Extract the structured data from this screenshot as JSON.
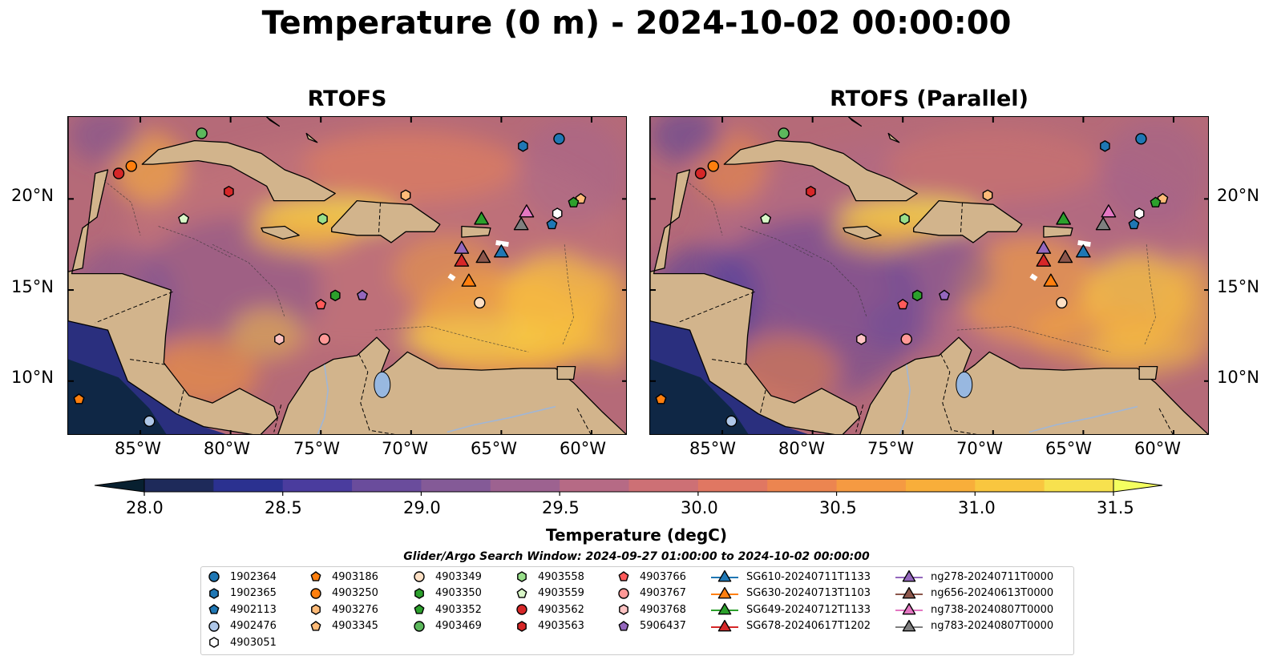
{
  "figure": {
    "title": "Temperature (0 m) - 2024-10-02 00:00:00",
    "panels": [
      {
        "id": "left",
        "title": "RTOFS"
      },
      {
        "id": "right",
        "title": "RTOFS (Parallel)"
      }
    ],
    "lat_ticks": [
      "20°N",
      "15°N",
      "10°N"
    ],
    "lon_ticks": [
      "85°W",
      "80°W",
      "75°W",
      "70°W",
      "65°W",
      "60°W"
    ],
    "colorbar": {
      "label": "Temperature (degC)",
      "min": 28.0,
      "max": 31.5,
      "ticks": [
        "28.0",
        "28.5",
        "29.0",
        "29.5",
        "30.0",
        "30.5",
        "31.0",
        "31.5"
      ],
      "colors": [
        "#1e2a5a",
        "#2b3190",
        "#4a3c9e",
        "#6a4c9c",
        "#845a97",
        "#9d6290",
        "#b66a85",
        "#cd7075",
        "#e07762",
        "#ec8550",
        "#f59a42",
        "#f8ae3a",
        "#f9c63f",
        "#f7e14e"
      ],
      "under_color": "#082030",
      "over_color": "#f4ff60"
    },
    "search_window": "Glider/Argo Search Window: 2024-09-27 01:00:00 to 2024-10-02 00:00:00",
    "land_color": "#d2b48c",
    "ocean_base_color": "#b56a78",
    "legend": [
      {
        "label": "1902364",
        "marker": "circle",
        "color": "#1f77b4"
      },
      {
        "label": "1902365",
        "marker": "hexagon",
        "color": "#1f77b4"
      },
      {
        "label": "4902113",
        "marker": "pentagon",
        "color": "#1f77b4"
      },
      {
        "label": "4902476",
        "marker": "circle",
        "color": "#aec7e8"
      },
      {
        "label": "4903051",
        "marker": "hexagon",
        "color": "#ffffff"
      },
      {
        "label": "4903186",
        "marker": "pentagon",
        "color": "#ff7f0e"
      },
      {
        "label": "4903250",
        "marker": "circle",
        "color": "#ff7f0e"
      },
      {
        "label": "4903276",
        "marker": "hexagon",
        "color": "#ffbb78"
      },
      {
        "label": "4903345",
        "marker": "pentagon",
        "color": "#ffbb78"
      },
      {
        "label": "4903349",
        "marker": "circle",
        "color": "#fde0c5"
      },
      {
        "label": "4903350",
        "marker": "hexagon",
        "color": "#2ca02c"
      },
      {
        "label": "4903352",
        "marker": "pentagon",
        "color": "#2ca02c"
      },
      {
        "label": "4903469",
        "marker": "circle",
        "color": "#5cb85c"
      },
      {
        "label": "4903558",
        "marker": "hexagon",
        "color": "#98df8a"
      },
      {
        "label": "4903559",
        "marker": "pentagon",
        "color": "#d9f7c8"
      },
      {
        "label": "4903562",
        "marker": "circle",
        "color": "#d62728"
      },
      {
        "label": "4903563",
        "marker": "hexagon",
        "color": "#d62728"
      },
      {
        "label": "4903766",
        "marker": "pentagon",
        "color": "#ff5a5a"
      },
      {
        "label": "4903767",
        "marker": "circle",
        "color": "#ff9896"
      },
      {
        "label": "4903768",
        "marker": "hexagon",
        "color": "#ffc4c4"
      },
      {
        "label": "5906437",
        "marker": "pentagon",
        "color": "#9467bd"
      },
      {
        "label": "SG610-20240711T1133",
        "marker": "triangle",
        "color": "#1f77b4"
      },
      {
        "label": "SG630-20240713T1103",
        "marker": "triangle",
        "color": "#ff7f0e"
      },
      {
        "label": "SG649-20240712T1133",
        "marker": "triangle",
        "color": "#2ca02c"
      },
      {
        "label": "SG678-20240617T1202",
        "marker": "triangle",
        "color": "#d62728"
      },
      {
        "label": "ng278-20240711T0000",
        "marker": "triangle",
        "color": "#9467bd"
      },
      {
        "label": "ng656-20240613T0000",
        "marker": "triangle",
        "color": "#8c564b"
      },
      {
        "label": "ng738-20240807T0000",
        "marker": "triangle",
        "color": "#e377c2"
      },
      {
        "label": "ng783-20240807T0000",
        "marker": "triangle",
        "color": "#7f7f7f"
      }
    ],
    "markers": [
      {
        "id": "1902364",
        "marker": "circle",
        "color": "#1f77b4",
        "lon": -61.8,
        "lat": 23.3
      },
      {
        "id": "1902365",
        "marker": "hexagon",
        "color": "#1f77b4",
        "lon": -63.8,
        "lat": 22.9
      },
      {
        "id": "4902113",
        "marker": "pentagon",
        "color": "#1f77b4",
        "lon": -62.2,
        "lat": 18.6
      },
      {
        "id": "4902476",
        "marker": "circle",
        "color": "#aec7e8",
        "lon": -84.5,
        "lat": 7.8
      },
      {
        "id": "4903051",
        "marker": "hexagon",
        "color": "#ffffff",
        "lon": -61.9,
        "lat": 19.2
      },
      {
        "id": "4903186",
        "marker": "pentagon",
        "color": "#ff7f0e",
        "lon": -88.4,
        "lat": 9.0
      },
      {
        "id": "4903250",
        "marker": "circle",
        "color": "#ff7f0e",
        "lon": -85.5,
        "lat": 21.8
      },
      {
        "id": "4903276",
        "marker": "hexagon",
        "color": "#ffbb78",
        "lon": -70.3,
        "lat": 20.2
      },
      {
        "id": "4903345",
        "marker": "pentagon",
        "color": "#ffbb78",
        "lon": -60.6,
        "lat": 20.0
      },
      {
        "id": "4903349",
        "marker": "circle",
        "color": "#fde0c5",
        "lon": -66.2,
        "lat": 14.3
      },
      {
        "id": "4903350",
        "marker": "hexagon",
        "color": "#2ca02c",
        "lon": -74.2,
        "lat": 14.7
      },
      {
        "id": "4903352",
        "marker": "pentagon",
        "color": "#2ca02c",
        "lon": -61.0,
        "lat": 19.8
      },
      {
        "id": "4903469",
        "marker": "circle",
        "color": "#5cb85c",
        "lon": -81.6,
        "lat": 23.6
      },
      {
        "id": "4903558",
        "marker": "hexagon",
        "color": "#98df8a",
        "lon": -74.9,
        "lat": 18.9
      },
      {
        "id": "4903559",
        "marker": "pentagon",
        "color": "#d9f7c8",
        "lon": -82.6,
        "lat": 18.9
      },
      {
        "id": "4903562",
        "marker": "circle",
        "color": "#d62728",
        "lon": -86.2,
        "lat": 21.4
      },
      {
        "id": "4903563",
        "marker": "hexagon",
        "color": "#d62728",
        "lon": -80.1,
        "lat": 20.4
      },
      {
        "id": "4903766",
        "marker": "pentagon",
        "color": "#ff5a5a",
        "lon": -75.0,
        "lat": 14.2
      },
      {
        "id": "4903767",
        "marker": "circle",
        "color": "#ff9896",
        "lon": -74.8,
        "lat": 12.3
      },
      {
        "id": "4903768",
        "marker": "hexagon",
        "color": "#ffc4c4",
        "lon": -77.3,
        "lat": 12.3
      },
      {
        "id": "5906437",
        "marker": "pentagon",
        "color": "#9467bd",
        "lon": -72.7,
        "lat": 14.7
      },
      {
        "id": "SG610-20240711T1133",
        "marker": "triangle",
        "color": "#1f77b4",
        "lon": -65.0,
        "lat": 17.1
      },
      {
        "id": "SG630-20240713T1103",
        "marker": "triangle",
        "color": "#ff7f0e",
        "lon": -66.8,
        "lat": 15.5
      },
      {
        "id": "SG649-20240712T1133",
        "marker": "triangle",
        "color": "#2ca02c",
        "lon": -66.1,
        "lat": 18.9
      },
      {
        "id": "SG678-20240617T1202",
        "marker": "triangle",
        "color": "#d62728",
        "lon": -67.2,
        "lat": 16.6
      },
      {
        "id": "ng278-20240711T0000",
        "marker": "triangle",
        "color": "#9467bd",
        "lon": -67.2,
        "lat": 17.3
      },
      {
        "id": "ng656-20240613T0000",
        "marker": "triangle",
        "color": "#8c564b",
        "lon": -66.0,
        "lat": 16.8
      },
      {
        "id": "ng738-20240807T0000",
        "marker": "triangle",
        "color": "#e377c2",
        "lon": -63.6,
        "lat": 19.3
      },
      {
        "id": "ng783-20240807T0000",
        "marker": "triangle",
        "color": "#7f7f7f",
        "lon": -63.9,
        "lat": 18.6
      }
    ]
  }
}
